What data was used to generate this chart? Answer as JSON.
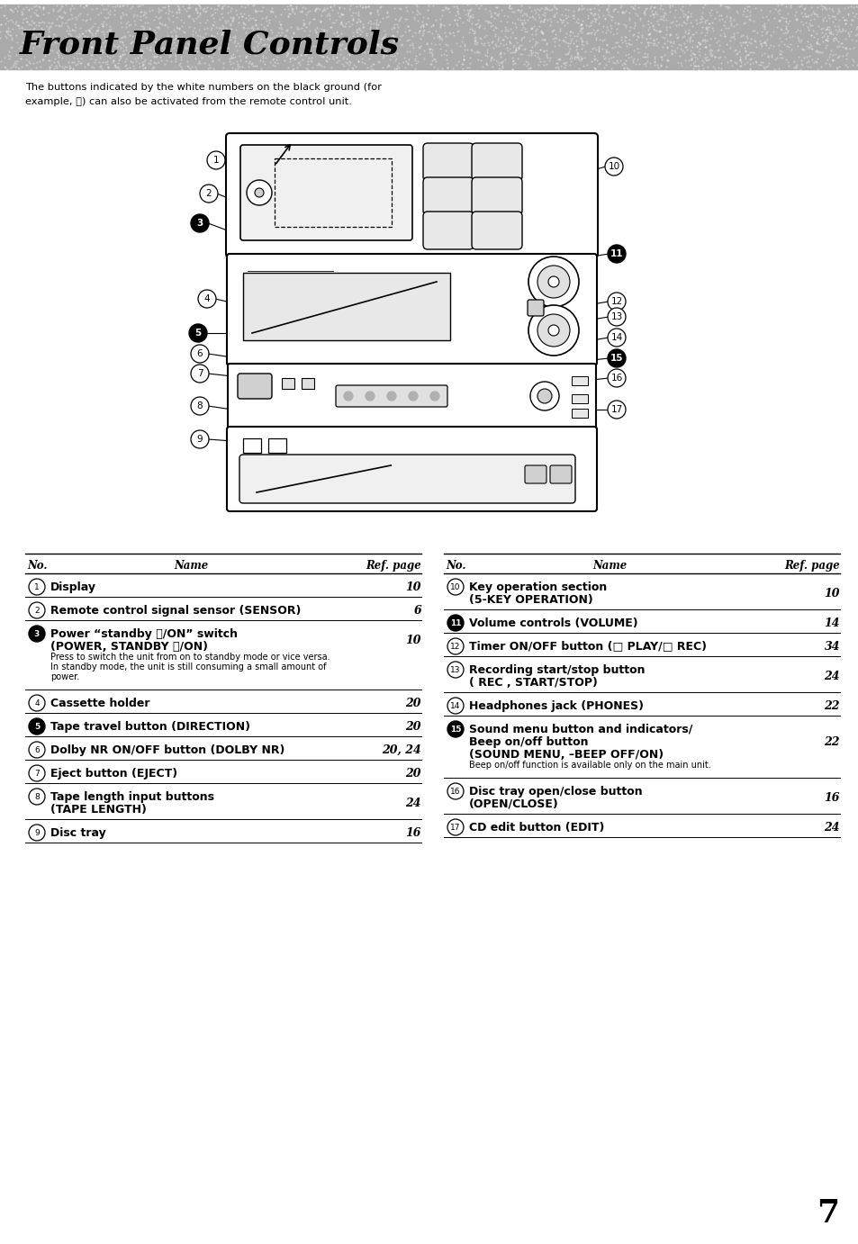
{
  "title": "Front Panel Controls",
  "title_font_size": 26,
  "description_line1": "The buttons indicated by the white numbers on the black ground (for",
  "description_line2": "example, Ⓒ) can also be activated from the remote control unit.",
  "page_number": "7",
  "left_table_header": [
    "No.",
    "Name",
    "Ref. page"
  ],
  "right_table_header": [
    "No.",
    "Name",
    "Ref. page"
  ],
  "left_entries": [
    {
      "num": "1",
      "bold": true,
      "black_bg": false,
      "name": "Display",
      "page": "10",
      "sub": ""
    },
    {
      "num": "2",
      "bold": true,
      "black_bg": false,
      "name": "Remote control signal sensor (SENSOR)",
      "page": "6",
      "sub": ""
    },
    {
      "num": "3",
      "bold": true,
      "black_bg": true,
      "name": "Power “standby ⏼/ON” switch\n(POWER, STANDBY ⏼/ON)",
      "page": "10",
      "sub": "Press to switch the unit from on to standby mode or vice versa.\nIn standby mode, the unit is still consuming a small amount of\npower."
    },
    {
      "num": "4",
      "bold": true,
      "black_bg": false,
      "name": "Cassette holder",
      "page": "20",
      "sub": ""
    },
    {
      "num": "5",
      "bold": true,
      "black_bg": true,
      "name": "Tape travel button (DIRECTION)",
      "page": "20",
      "sub": ""
    },
    {
      "num": "6",
      "bold": true,
      "black_bg": false,
      "name": "Dolby NR ON/OFF button (DOLBY NR)",
      "page": "20, 24",
      "sub": ""
    },
    {
      "num": "7",
      "bold": true,
      "black_bg": false,
      "name": "Eject button (EJECT)",
      "page": "20",
      "sub": ""
    },
    {
      "num": "8",
      "bold": true,
      "black_bg": false,
      "name": "Tape length input buttons\n(TAPE LENGTH)",
      "page": "24",
      "sub": ""
    },
    {
      "num": "9",
      "bold": true,
      "black_bg": false,
      "name": "Disc tray",
      "page": "16",
      "sub": ""
    }
  ],
  "right_entries": [
    {
      "num": "10",
      "bold": true,
      "black_bg": false,
      "name": "Key operation section\n(5-KEY OPERATION)",
      "page": "10",
      "sub": ""
    },
    {
      "num": "11",
      "bold": true,
      "black_bg": true,
      "name": "Volume controls (VOLUME)",
      "page": "14",
      "sub": ""
    },
    {
      "num": "12",
      "bold": true,
      "black_bg": false,
      "name": "Timer ON/OFF button (□ PLAY/□ REC)",
      "page": "34",
      "sub": ""
    },
    {
      "num": "13",
      "bold": true,
      "black_bg": false,
      "name": "Recording start/stop button\n( REC , START/STOP)",
      "page": "24",
      "sub": ""
    },
    {
      "num": "14",
      "bold": true,
      "black_bg": false,
      "name": "Headphones jack (PHONES)",
      "page": "22",
      "sub": ""
    },
    {
      "num": "15",
      "bold": true,
      "black_bg": true,
      "name": "Sound menu button and indicators/\nBeep on/off button\n(SOUND MENU, –BEEP OFF/ON)",
      "page": "22",
      "sub": "Beep on/off function is available only on the main unit."
    },
    {
      "num": "16",
      "bold": true,
      "black_bg": false,
      "name": "Disc tray open/close button\n(OPEN/CLOSE)",
      "page": "16",
      "sub": ""
    },
    {
      "num": "17",
      "bold": true,
      "black_bg": false,
      "name": "CD edit button (EDIT)",
      "page": "24",
      "sub": ""
    }
  ]
}
